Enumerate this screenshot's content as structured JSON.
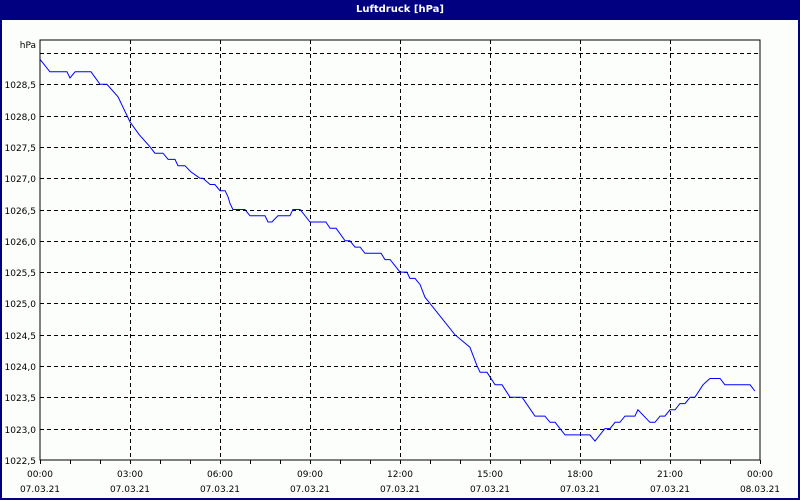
{
  "window": {
    "title": "Luftdruck [hPa]",
    "title_bar_color": "#000080",
    "background_color": "#fcfefc"
  },
  "chart_data": {
    "type": "line",
    "title": "Luftdruck [hPa]",
    "ylabel": "hPa",
    "xlabel": "",
    "ylim": [
      1022.5,
      1029.2
    ],
    "y_ticks": [
      "1028,5",
      "1028,0",
      "1027,5",
      "1027,0",
      "1026,5",
      "1026,0",
      "1025,5",
      "1025,0",
      "1024,5",
      "1024,0",
      "1023,5",
      "1023,0",
      "1022,5"
    ],
    "y_tick_values": [
      1028.5,
      1028.0,
      1027.5,
      1027.0,
      1026.5,
      1026.0,
      1025.5,
      1025.0,
      1024.5,
      1024.0,
      1023.5,
      1023.0,
      1022.5
    ],
    "y_gridlines": [
      1029.0,
      1028.5,
      1028.0,
      1027.5,
      1027.0,
      1026.5,
      1026.0,
      1025.5,
      1025.0,
      1024.5,
      1024.0,
      1023.5,
      1023.0
    ],
    "x_ticks": [
      {
        "hour": 0,
        "time": "00:00",
        "date": "07.03.21"
      },
      {
        "hour": 3,
        "time": "03:00",
        "date": "07.03.21"
      },
      {
        "hour": 6,
        "time": "06:00",
        "date": "07.03.21"
      },
      {
        "hour": 9,
        "time": "09:00",
        "date": "07.03.21"
      },
      {
        "hour": 12,
        "time": "12:00",
        "date": "07.03.21"
      },
      {
        "hour": 15,
        "time": "15:00",
        "date": "07.03.21"
      },
      {
        "hour": 18,
        "time": "18:00",
        "date": "07.03.21"
      },
      {
        "hour": 21,
        "time": "21:00",
        "date": "07.03.21"
      },
      {
        "hour": 24,
        "time": "00:00",
        "date": "08.03.21"
      }
    ],
    "grid": true,
    "legend": null,
    "series": [
      {
        "name": "Luftdruck",
        "color": "#0000ff",
        "points": [
          [
            0.0,
            1028.9
          ],
          [
            0.33,
            1028.7
          ],
          [
            0.9,
            1028.7
          ],
          [
            1.0,
            1028.6
          ],
          [
            1.17,
            1028.7
          ],
          [
            1.7,
            1028.7
          ],
          [
            2.0,
            1028.5
          ],
          [
            2.23,
            1028.5
          ],
          [
            2.6,
            1028.3
          ],
          [
            2.8,
            1028.1
          ],
          [
            3.0,
            1027.9
          ],
          [
            3.3,
            1027.7
          ],
          [
            3.67,
            1027.5
          ],
          [
            3.83,
            1027.4
          ],
          [
            4.1,
            1027.4
          ],
          [
            4.27,
            1027.3
          ],
          [
            4.5,
            1027.3
          ],
          [
            4.6,
            1027.2
          ],
          [
            4.83,
            1027.2
          ],
          [
            5.03,
            1027.1
          ],
          [
            5.33,
            1027.0
          ],
          [
            5.43,
            1027.0
          ],
          [
            5.67,
            1026.9
          ],
          [
            5.83,
            1026.9
          ],
          [
            6.0,
            1026.8
          ],
          [
            6.17,
            1026.8
          ],
          [
            6.27,
            1026.7
          ],
          [
            6.33,
            1026.6
          ],
          [
            6.43,
            1026.5
          ],
          [
            6.83,
            1026.5
          ],
          [
            7.0,
            1026.4
          ],
          [
            7.5,
            1026.4
          ],
          [
            7.6,
            1026.3
          ],
          [
            7.73,
            1026.3
          ],
          [
            7.93,
            1026.4
          ],
          [
            8.33,
            1026.4
          ],
          [
            8.43,
            1026.5
          ],
          [
            8.67,
            1026.5
          ],
          [
            9.0,
            1026.3
          ],
          [
            9.53,
            1026.3
          ],
          [
            9.67,
            1026.2
          ],
          [
            9.87,
            1026.2
          ],
          [
            10.17,
            1026.0
          ],
          [
            10.33,
            1026.0
          ],
          [
            10.5,
            1025.9
          ],
          [
            10.67,
            1025.9
          ],
          [
            10.83,
            1025.8
          ],
          [
            11.37,
            1025.8
          ],
          [
            11.5,
            1025.7
          ],
          [
            11.67,
            1025.7
          ],
          [
            12.0,
            1025.5
          ],
          [
            12.23,
            1025.5
          ],
          [
            12.33,
            1025.4
          ],
          [
            12.5,
            1025.4
          ],
          [
            12.67,
            1025.3
          ],
          [
            12.83,
            1025.1
          ],
          [
            13.0,
            1025.0
          ],
          [
            13.83,
            1024.5
          ],
          [
            14.33,
            1024.3
          ],
          [
            14.57,
            1024.0
          ],
          [
            14.67,
            1023.9
          ],
          [
            14.9,
            1023.9
          ],
          [
            15.17,
            1023.7
          ],
          [
            15.4,
            1023.7
          ],
          [
            15.67,
            1023.5
          ],
          [
            16.07,
            1023.5
          ],
          [
            16.5,
            1023.2
          ],
          [
            16.83,
            1023.2
          ],
          [
            17.0,
            1023.1
          ],
          [
            17.17,
            1023.1
          ],
          [
            17.5,
            1022.9
          ],
          [
            18.33,
            1022.9
          ],
          [
            18.5,
            1022.8
          ],
          [
            18.83,
            1023.0
          ],
          [
            19.0,
            1023.0
          ],
          [
            19.17,
            1023.1
          ],
          [
            19.33,
            1023.1
          ],
          [
            19.5,
            1023.2
          ],
          [
            19.83,
            1023.2
          ],
          [
            19.93,
            1023.3
          ],
          [
            20.33,
            1023.1
          ],
          [
            20.5,
            1023.1
          ],
          [
            20.67,
            1023.2
          ],
          [
            20.83,
            1023.2
          ],
          [
            21.0,
            1023.3
          ],
          [
            21.17,
            1023.3
          ],
          [
            21.33,
            1023.4
          ],
          [
            21.5,
            1023.4
          ],
          [
            21.67,
            1023.5
          ],
          [
            21.83,
            1023.5
          ],
          [
            22.1,
            1023.7
          ],
          [
            22.33,
            1023.8
          ],
          [
            22.67,
            1023.8
          ],
          [
            22.83,
            1023.7
          ],
          [
            23.67,
            1023.7
          ],
          [
            23.83,
            1023.6
          ]
        ]
      }
    ]
  }
}
